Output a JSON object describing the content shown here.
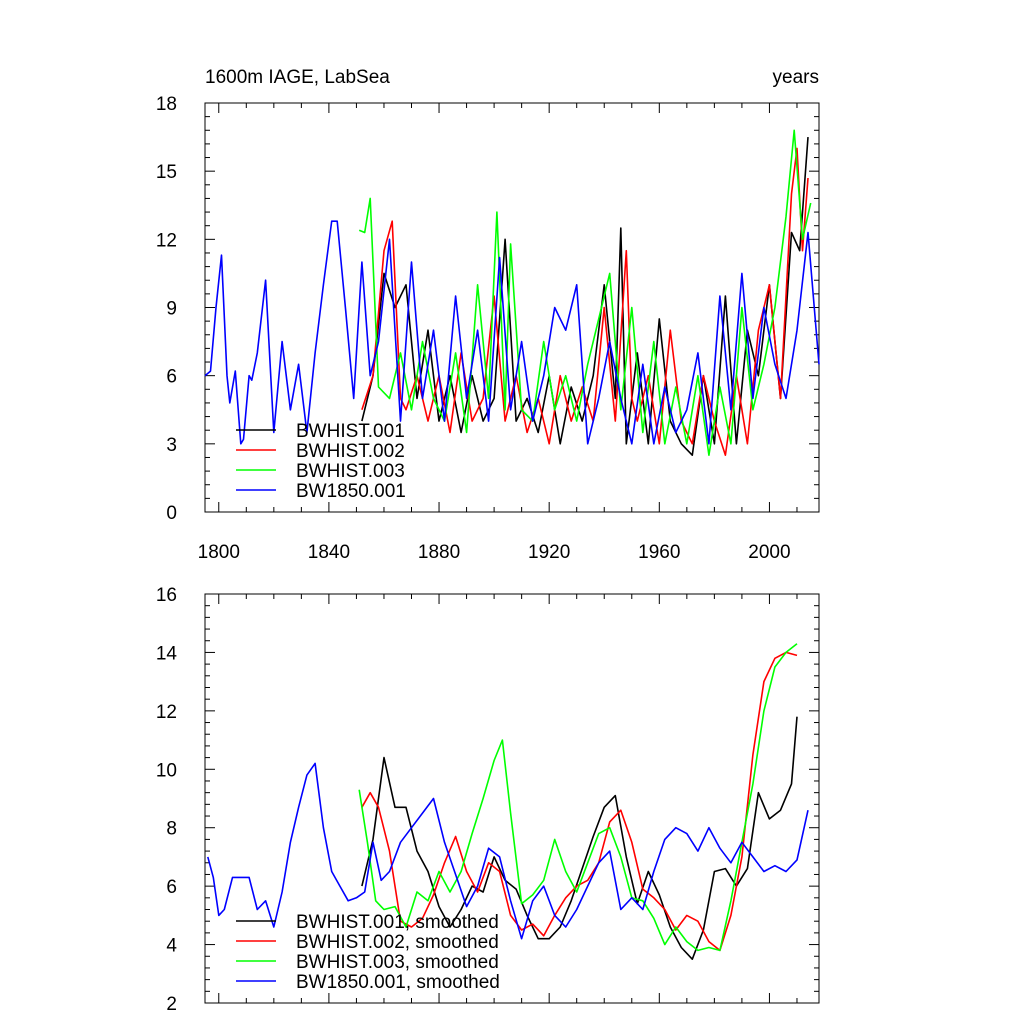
{
  "chart_data": [
    {
      "type": "line",
      "title": "1600m IAGE, LabSea",
      "right_title": "years",
      "xlim": [
        1795,
        2018
      ],
      "ylim": [
        0,
        18
      ],
      "x_ticks": [
        1800,
        1840,
        1880,
        1920,
        1960,
        2000
      ],
      "x_tick_labels": [
        "1800",
        "1840",
        "1880",
        "1920",
        "1960",
        "2000"
      ],
      "y_ticks": [
        0,
        3,
        6,
        9,
        12,
        15,
        18
      ],
      "y_tick_labels": [
        "0",
        "3",
        "6",
        "9",
        "12",
        "15",
        "18"
      ],
      "legend_position": "bottom-left",
      "series": [
        {
          "name": "BWHIST.001",
          "color": "#000000",
          "x": [
            1852,
            1856,
            1860,
            1864,
            1868,
            1872,
            1876,
            1880,
            1884,
            1888,
            1892,
            1896,
            1900,
            1904,
            1908,
            1912,
            1916,
            1920,
            1924,
            1928,
            1932,
            1936,
            1940,
            1944,
            1946,
            1948,
            1952,
            1956,
            1960,
            1964,
            1968,
            1972,
            1976,
            1980,
            1984,
            1988,
            1992,
            1996,
            2000,
            2004,
            2008,
            2011,
            2014
          ],
          "y": [
            4,
            6,
            10.5,
            9,
            10,
            5,
            8,
            4,
            6,
            3.5,
            6,
            4,
            5,
            12,
            4,
            5,
            3.5,
            6,
            3,
            5.5,
            4,
            6,
            10,
            5,
            12.5,
            3,
            7,
            3,
            8.5,
            4,
            3,
            2.5,
            6,
            3,
            9.5,
            3,
            8,
            6,
            10,
            5,
            12.3,
            11.5,
            16.5
          ]
        },
        {
          "name": "BWHIST.002",
          "color": "#ff0000",
          "x": [
            1852,
            1856,
            1860,
            1863,
            1866,
            1868,
            1872,
            1876,
            1880,
            1884,
            1888,
            1892,
            1896,
            1900,
            1904,
            1908,
            1912,
            1916,
            1920,
            1924,
            1928,
            1932,
            1936,
            1940,
            1944,
            1948,
            1950,
            1952,
            1956,
            1960,
            1964,
            1968,
            1972,
            1976,
            1980,
            1984,
            1988,
            1992,
            1996,
            2000,
            2004,
            2008,
            2010,
            2012,
            2014
          ],
          "y": [
            4.5,
            6,
            11.5,
            12.8,
            5,
            4.5,
            6,
            4,
            6,
            3.5,
            7,
            4,
            5,
            9.5,
            4,
            6,
            3.5,
            5,
            3,
            6,
            4,
            5.5,
            4,
            9,
            4,
            11.5,
            5,
            4,
            6,
            3,
            8,
            4,
            3,
            6,
            4,
            2.5,
            6,
            3,
            8,
            10,
            5,
            14,
            16,
            11.5,
            14.7
          ]
        },
        {
          "name": "BWHIST.003",
          "color": "#00ff00",
          "x": [
            1851,
            1853,
            1855,
            1858,
            1862,
            1866,
            1870,
            1874,
            1878,
            1882,
            1886,
            1890,
            1894,
            1898,
            1901,
            1904,
            1906,
            1910,
            1914,
            1918,
            1922,
            1926,
            1930,
            1934,
            1938,
            1942,
            1946,
            1950,
            1954,
            1958,
            1962,
            1966,
            1970,
            1974,
            1978,
            1982,
            1986,
            1990,
            1994,
            1998,
            2002,
            2006,
            2009,
            2012,
            2015
          ],
          "y": [
            12.4,
            12.3,
            13.8,
            5.5,
            5,
            7,
            4.5,
            7.5,
            5,
            4,
            7,
            3.5,
            10,
            5,
            13.2,
            4.5,
            11.8,
            4.5,
            4,
            7.5,
            4.5,
            6,
            4,
            6.5,
            8.5,
            10.5,
            4.5,
            9,
            3.5,
            7.5,
            3,
            5.5,
            3,
            6,
            2.5,
            5.5,
            3,
            9,
            4.5,
            6.5,
            9,
            13,
            16.8,
            12,
            13.6
          ]
        },
        {
          "name": "BW1850.001",
          "color": "#0000ff",
          "x": [
            1795,
            1797,
            1799,
            1801,
            1803,
            1804,
            1806,
            1808,
            1809,
            1811,
            1812,
            1814,
            1817,
            1820,
            1823,
            1826,
            1829,
            1832,
            1835,
            1838,
            1841,
            1843,
            1846,
            1849,
            1852,
            1855,
            1858,
            1862,
            1866,
            1870,
            1874,
            1878,
            1882,
            1886,
            1890,
            1894,
            1898,
            1902,
            1906,
            1910,
            1914,
            1918,
            1922,
            1926,
            1930,
            1934,
            1938,
            1942,
            1946,
            1950,
            1954,
            1958,
            1962,
            1966,
            1970,
            1974,
            1978,
            1982,
            1986,
            1990,
            1994,
            1998,
            2002,
            2006,
            2010,
            2014,
            2018
          ],
          "y": [
            6,
            6.2,
            9,
            11.3,
            6,
            4.8,
            6.2,
            3,
            3.2,
            6,
            5.8,
            7,
            10.2,
            3.5,
            7.5,
            4.5,
            6.5,
            3.5,
            7,
            10,
            12.8,
            12.8,
            9,
            5,
            11,
            6,
            7.5,
            12,
            4,
            11,
            5,
            8,
            4,
            9.5,
            5,
            8,
            4,
            11.2,
            4.5,
            7.5,
            4,
            6,
            9,
            8,
            10,
            3,
            5,
            7.5,
            5,
            3,
            6.5,
            3,
            5.5,
            3.5,
            4.5,
            7,
            3,
            9.5,
            4.5,
            10.5,
            5,
            9,
            6.5,
            5,
            8,
            12.3,
            6.5
          ]
        }
      ]
    },
    {
      "type": "line",
      "title": "",
      "xlim": [
        1795,
        2018
      ],
      "ylim": [
        2,
        16
      ],
      "x_ticks": [
        1800,
        1840,
        1880,
        1920,
        1960,
        2000
      ],
      "y_ticks": [
        2,
        4,
        6,
        8,
        10,
        12,
        14,
        16
      ],
      "y_tick_labels": [
        "2",
        "4",
        "6",
        "8",
        "10",
        "12",
        "14",
        "16"
      ],
      "legend_position": "bottom-left",
      "series": [
        {
          "name": "BWHIST.001, smoothed",
          "color": "#000000",
          "x": [
            1852,
            1856,
            1860,
            1864,
            1868,
            1872,
            1876,
            1880,
            1884,
            1888,
            1892,
            1896,
            1900,
            1904,
            1908,
            1912,
            1916,
            1920,
            1924,
            1928,
            1932,
            1936,
            1940,
            1944,
            1948,
            1952,
            1956,
            1960,
            1964,
            1968,
            1972,
            1976,
            1980,
            1984,
            1988,
            1992,
            1996,
            2000,
            2004,
            2008,
            2010
          ],
          "y": [
            6,
            7.6,
            10.4,
            8.7,
            8.7,
            7.2,
            6.5,
            5.3,
            4.6,
            5.2,
            6,
            5.8,
            7,
            6.2,
            5.9,
            5,
            4.2,
            4.2,
            4.6,
            5.5,
            6.6,
            7.7,
            8.7,
            9.1,
            7,
            5.4,
            6.5,
            5.7,
            4.6,
            3.9,
            3.5,
            4.5,
            6.5,
            6.6,
            6,
            6.6,
            9.2,
            8.3,
            8.6,
            9.5,
            11.8
          ]
        },
        {
          "name": "BWHIST.002, smoothed",
          "color": "#ff0000",
          "x": [
            1852,
            1855,
            1858,
            1862,
            1866,
            1870,
            1874,
            1878,
            1882,
            1886,
            1890,
            1894,
            1898,
            1902,
            1906,
            1910,
            1914,
            1918,
            1922,
            1926,
            1930,
            1934,
            1938,
            1942,
            1946,
            1950,
            1954,
            1958,
            1962,
            1966,
            1970,
            1974,
            1978,
            1982,
            1986,
            1990,
            1994,
            1998,
            2002,
            2006,
            2010
          ],
          "y": [
            8.7,
            9.2,
            8.7,
            7.2,
            4.8,
            4.6,
            4.9,
            5.7,
            6.8,
            7.7,
            6.5,
            5.8,
            6.8,
            6.5,
            5,
            4.5,
            4.7,
            4.3,
            5,
            5.6,
            6,
            6.2,
            6.8,
            8.2,
            8.6,
            7.5,
            5.9,
            5.6,
            5.2,
            4.5,
            5,
            4.8,
            4.1,
            3.8,
            5,
            7,
            10.5,
            13,
            13.8,
            14,
            13.9
          ]
        },
        {
          "name": "BWHIST.003, smoothed",
          "color": "#00ff00",
          "x": [
            1851,
            1854,
            1857,
            1860,
            1864,
            1868,
            1872,
            1876,
            1880,
            1884,
            1888,
            1892,
            1896,
            1900,
            1903,
            1906,
            1910,
            1914,
            1918,
            1922,
            1926,
            1930,
            1934,
            1938,
            1942,
            1946,
            1950,
            1954,
            1958,
            1962,
            1966,
            1970,
            1974,
            1978,
            1982,
            1986,
            1990,
            1994,
            1998,
            2002,
            2006,
            2010
          ],
          "y": [
            9.3,
            7.5,
            5.5,
            5.2,
            5.3,
            4.6,
            5.8,
            5.5,
            6.5,
            5.8,
            6.5,
            7.8,
            9,
            10.3,
            11,
            8.5,
            5.4,
            5.7,
            6.2,
            7.6,
            6.5,
            5.8,
            6.8,
            7.8,
            8,
            7,
            5.6,
            5.5,
            4.9,
            4,
            4.6,
            4.1,
            3.8,
            3.9,
            3.8,
            5.5,
            7.5,
            9.5,
            12,
            13.5,
            14,
            14.3
          ]
        },
        {
          "name": "BW1850.001, smoothed",
          "color": "#0000ff",
          "x": [
            1796,
            1798,
            1800,
            1802,
            1805,
            1808,
            1811,
            1814,
            1817,
            1820,
            1823,
            1826,
            1829,
            1832,
            1835,
            1838,
            1841,
            1844,
            1847,
            1850,
            1853,
            1856,
            1859,
            1862,
            1866,
            1870,
            1874,
            1878,
            1882,
            1886,
            1890,
            1894,
            1898,
            1902,
            1906,
            1910,
            1914,
            1918,
            1922,
            1926,
            1930,
            1934,
            1938,
            1942,
            1946,
            1950,
            1954,
            1958,
            1962,
            1966,
            1970,
            1974,
            1978,
            1982,
            1986,
            1990,
            1994,
            1998,
            2002,
            2006,
            2010,
            2014
          ],
          "y": [
            7,
            6.3,
            5,
            5.2,
            6.3,
            6.3,
            6.3,
            5.2,
            5.5,
            4.6,
            5.8,
            7.5,
            8.7,
            9.8,
            10.2,
            8,
            6.5,
            6,
            5.5,
            5.6,
            5.8,
            7.5,
            6.2,
            6.5,
            7.5,
            8,
            8.5,
            9,
            7.5,
            6.4,
            5.3,
            6,
            7.3,
            7,
            5.5,
            4.2,
            5.5,
            6,
            5,
            4.6,
            5.2,
            6,
            6.8,
            7.2,
            5.2,
            5.6,
            5.2,
            6.5,
            7.6,
            8,
            7.8,
            7.2,
            8,
            7.3,
            6.8,
            7.5,
            7,
            6.5,
            6.7,
            6.5,
            6.9,
            8.6
          ]
        }
      ]
    }
  ]
}
